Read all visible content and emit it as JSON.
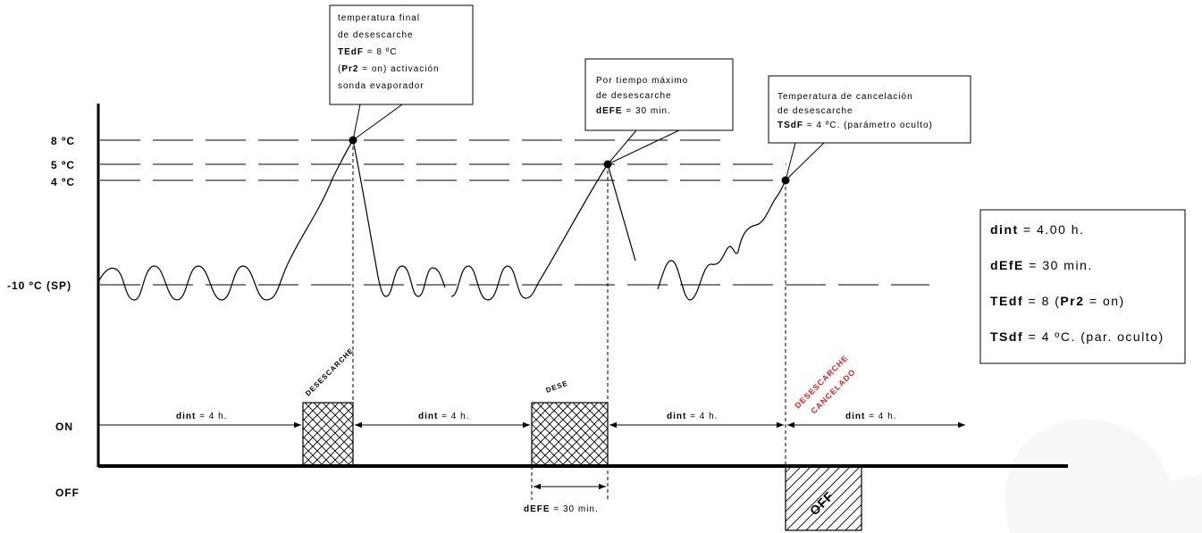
{
  "axis": {
    "y_labels": [
      "8 ºC",
      "5 ºC",
      "4 ºC",
      "-10 ºC (SP)"
    ],
    "on_label": "ON",
    "off_label": "OFF"
  },
  "callouts": {
    "c1": {
      "lines": [
        [
          {
            "t": "temperatura final",
            "b": false
          }
        ],
        [
          {
            "t": "de desescarche",
            "b": false
          }
        ],
        [
          {
            "t": "TEdF",
            "b": true
          },
          {
            "t": " = 8 ºC",
            "b": false
          }
        ],
        [
          {
            "t": "(",
            "b": false
          },
          {
            "t": "Pr2",
            "b": true
          },
          {
            "t": " = on) activación",
            "b": false
          }
        ],
        [
          {
            "t": "sonda evaporador",
            "b": false
          }
        ]
      ]
    },
    "c2": {
      "lines": [
        [
          {
            "t": "Por tiempo máximo",
            "b": false
          }
        ],
        [
          {
            "t": "de desescarche",
            "b": false
          }
        ],
        [
          {
            "t": "dEFE",
            "b": true
          },
          {
            "t": " = 30 min.",
            "b": false
          }
        ]
      ]
    },
    "c3": {
      "lines": [
        [
          {
            "t": "Temperatura de cancelación",
            "b": false
          }
        ],
        [
          {
            "t": "de desescarche",
            "b": false
          }
        ],
        [
          {
            "t": "TSdF",
            "b": true
          },
          {
            "t": " = 4 ºC. (parámetro oculto)",
            "b": false
          }
        ]
      ]
    }
  },
  "params_box": [
    [
      {
        "t": "dint",
        "b": true
      },
      {
        "t": " = 4.00 h.",
        "b": false
      }
    ],
    [
      {
        "t": "dEfE",
        "b": true
      },
      {
        "t": " = 30 min.",
        "b": false
      }
    ],
    [
      {
        "t": "TEdf",
        "b": true
      },
      {
        "t": " = 8 (",
        "b": false
      },
      {
        "t": "Pr2",
        "b": true
      },
      {
        "t": " = on)",
        "b": false
      }
    ],
    [
      {
        "t": "TSdf",
        "b": true
      },
      {
        "t": " = 4 ºC. (par. oculto)",
        "b": false
      }
    ]
  ],
  "dint_segments": [
    [
      {
        "t": "dint",
        "b": true
      },
      {
        "t": " = 4 h.",
        "b": false
      }
    ],
    [
      {
        "t": "dint",
        "b": true
      },
      {
        "t": " = 4 h.",
        "b": false
      }
    ],
    [
      {
        "t": "dint",
        "b": true
      },
      {
        "t": " = 4 h.",
        "b": false
      }
    ],
    [
      {
        "t": "dint",
        "b": true
      },
      {
        "t": " = 4 h.",
        "b": false
      }
    ]
  ],
  "defrost_labels": {
    "d1": "DESESCARCHE",
    "d2": "DESE",
    "cancel_1": "DESESCARCHE",
    "cancel_2": "CANCELADO",
    "off_block": "OFF"
  },
  "defe_measure": [
    {
      "t": "dEFE",
      "b": true
    },
    {
      "t": " = 30 min.",
      "b": false
    }
  ],
  "colors": {
    "cancel": "#e02020",
    "line": "#000000"
  }
}
